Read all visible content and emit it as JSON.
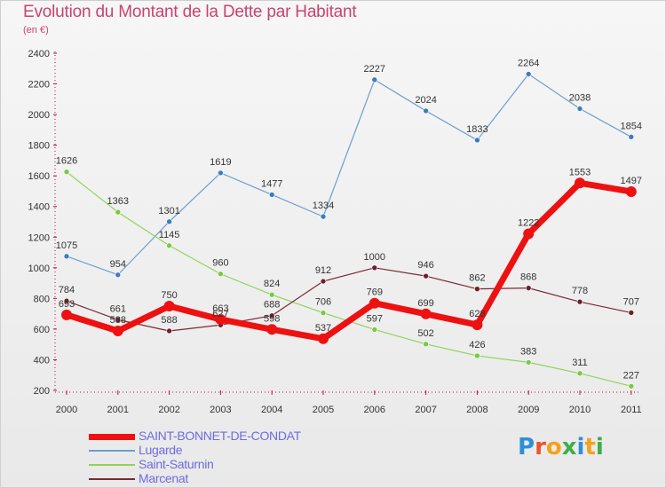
{
  "title": "Evolution du Montant de la Dette par Habitant",
  "subtitle": "(en €)",
  "logo_letters": [
    {
      "ch": "P",
      "color": "#2f8fd6"
    },
    {
      "ch": "r",
      "color": "#e8552c"
    },
    {
      "ch": "o",
      "color": "#f3a21b"
    },
    {
      "ch": "x",
      "color": "#3fae49"
    },
    {
      "ch": "i",
      "color": "#2f8fd6"
    },
    {
      "ch": "t",
      "color": "#f3a21b"
    },
    {
      "ch": "i",
      "color": "#3fae49"
    }
  ],
  "chart_data": {
    "type": "line",
    "x": [
      "2000",
      "2001",
      "2002",
      "2003",
      "2004",
      "2005",
      "2006",
      "2007",
      "2008",
      "2009",
      "2010",
      "2011"
    ],
    "ylim": [
      200,
      2400
    ],
    "yticks": [
      "200",
      "400",
      "600",
      "800",
      "1000",
      "1200",
      "1400",
      "1600",
      "1800",
      "2000",
      "2200",
      "2400"
    ],
    "grid": false,
    "legend_position": "bottom-left",
    "series": [
      {
        "name": "SAINT-BONNET-DE-CONDAT",
        "color": "#ee1111",
        "width": 7,
        "marker": 6,
        "values": [
          693,
          588,
          750,
          663,
          598,
          537,
          769,
          699,
          628,
          1222,
          1553,
          1497
        ],
        "labels": [
          "693",
          "588",
          "750",
          "663",
          "598",
          "537",
          "769",
          "699",
          "628",
          "1222",
          "1553",
          "1497"
        ]
      },
      {
        "name": "Lugarde",
        "color": "#6a9fd0",
        "width": 1.2,
        "marker": 3,
        "marker_color": "#3a7cc0",
        "values": [
          1075,
          954,
          1301,
          1619,
          1477,
          1334,
          2227,
          2024,
          1833,
          2264,
          2038,
          1854
        ],
        "labels": [
          "1075",
          "954",
          "1301",
          "1619",
          "1477",
          "1334",
          "2227",
          "2024",
          "1833",
          "2264",
          "2038",
          "1854"
        ]
      },
      {
        "name": "Saint-Saturnin",
        "color": "#8fd45a",
        "width": 1.2,
        "marker": 3,
        "marker_color": "#7ac93e",
        "values": [
          1626,
          1363,
          1145,
          960,
          824,
          706,
          597,
          502,
          426,
          383,
          311,
          227
        ],
        "labels": [
          "1626",
          "1363",
          "1145",
          "960",
          "824",
          "706",
          "597",
          "502",
          "426",
          "383",
          "311",
          "227"
        ]
      },
      {
        "name": "Marcenat",
        "color": "#7a2a34",
        "width": 1.2,
        "marker": 3,
        "marker_color": "#6e1f2a",
        "values": [
          784,
          661,
          588,
          627,
          688,
          912,
          1000,
          946,
          862,
          868,
          778,
          707
        ],
        "labels": [
          "784",
          "661",
          "588",
          "627",
          "688",
          "912",
          "1000",
          "946",
          "862",
          "868",
          "778",
          "707"
        ]
      }
    ]
  }
}
